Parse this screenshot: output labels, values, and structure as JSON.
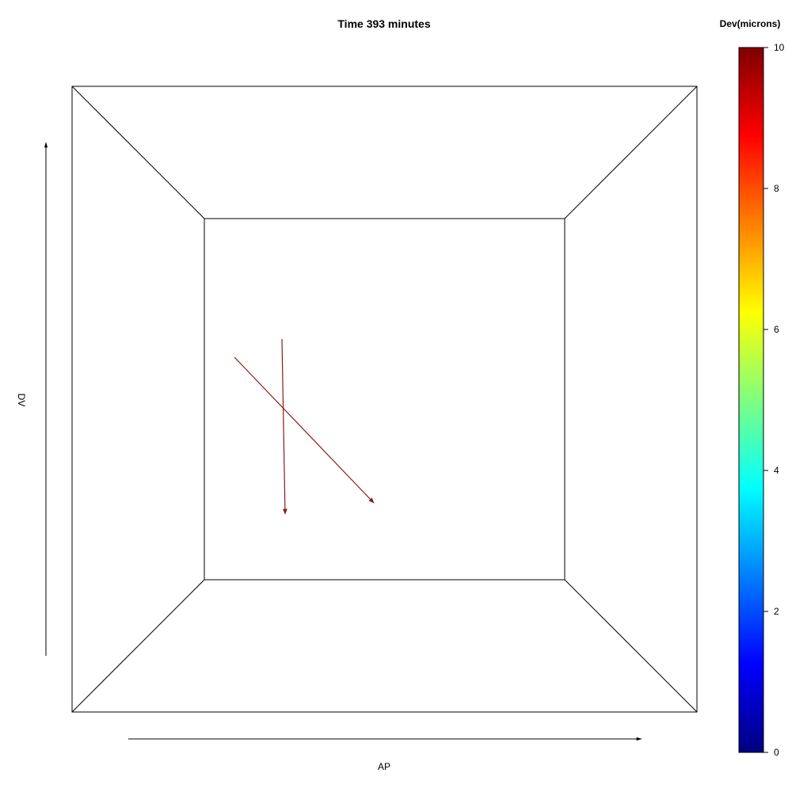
{
  "title": "Time 393 minutes",
  "axes": {
    "x_label": "AP",
    "y_label": "DV"
  },
  "colorbar": {
    "title": "Dev(microns)",
    "min": 0,
    "max": 10,
    "ticks": [
      "0",
      "2",
      "4",
      "6",
      "8",
      "10"
    ],
    "colormap": [
      "#00007f",
      "#0000ff",
      "#007fff",
      "#00ffff",
      "#7fff7f",
      "#ffff00",
      "#ff7f00",
      "#ff0000",
      "#7f0000"
    ]
  },
  "vectors": [
    {
      "dev": 10,
      "color": "#8b1a1a"
    },
    {
      "dev": 10,
      "color": "#8b1a1a"
    }
  ]
}
